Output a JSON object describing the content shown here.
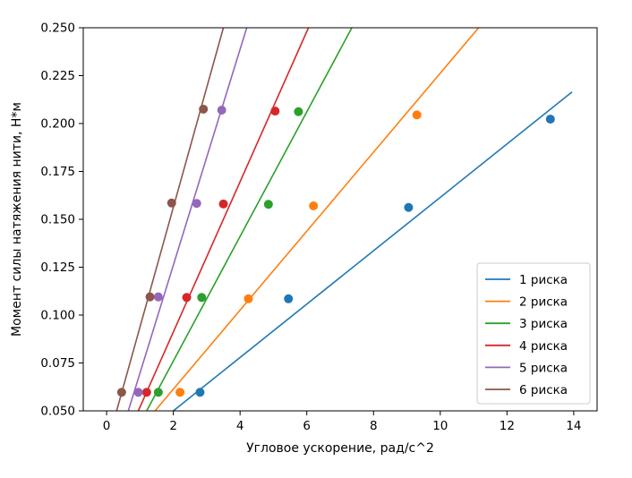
{
  "chart_data": {
    "type": "scatter",
    "title": "",
    "xlabel": "Угловое ускорение, рад/с^2",
    "ylabel": "Момент силы натяжения нити, Н*м",
    "xlim": [
      -0.7,
      14.7
    ],
    "ylim": [
      0.05,
      0.25
    ],
    "x_ticks": [
      0,
      2,
      4,
      6,
      8,
      10,
      12,
      14
    ],
    "y_ticks": [
      0.05,
      0.075,
      0.1,
      0.125,
      0.15,
      0.175,
      0.2,
      0.225,
      0.25
    ],
    "x_tick_labels": [
      "0",
      "2",
      "4",
      "6",
      "8",
      "10",
      "12",
      "14"
    ],
    "y_tick_labels": [
      "0.050",
      "0.075",
      "0.100",
      "0.125",
      "0.150",
      "0.175",
      "0.200",
      "0.225",
      "0.250"
    ],
    "grid": false,
    "legend_position": "lower-right",
    "series": [
      {
        "name": "1 риска",
        "color": "#1f77b4",
        "points": [
          [
            2.8,
            0.0597
          ],
          [
            5.45,
            0.1085
          ],
          [
            9.05,
            0.1562
          ],
          [
            13.3,
            0.2023
          ]
        ],
        "fit_line": [
          [
            2.0,
            0.05
          ],
          [
            13.95,
            0.2165
          ]
        ]
      },
      {
        "name": "2 риска",
        "color": "#ff7f0e",
        "points": [
          [
            2.2,
            0.0597
          ],
          [
            4.25,
            0.1085
          ],
          [
            6.2,
            0.157
          ],
          [
            9.3,
            0.2045
          ]
        ],
        "fit_line": [
          [
            1.45,
            0.05
          ],
          [
            11.15,
            0.25
          ]
        ]
      },
      {
        "name": "3 риска",
        "color": "#2ca02c",
        "points": [
          [
            1.55,
            0.0597
          ],
          [
            2.85,
            0.1092
          ],
          [
            4.85,
            0.1578
          ],
          [
            5.75,
            0.2062
          ]
        ],
        "fit_line": [
          [
            1.2,
            0.05
          ],
          [
            7.35,
            0.25
          ]
        ]
      },
      {
        "name": "4 риска",
        "color": "#d62728",
        "points": [
          [
            1.2,
            0.0597
          ],
          [
            2.4,
            0.1092
          ],
          [
            3.5,
            0.158
          ],
          [
            5.05,
            0.2065
          ]
        ],
        "fit_line": [
          [
            0.95,
            0.05
          ],
          [
            6.05,
            0.25
          ]
        ]
      },
      {
        "name": "5 риска",
        "color": "#9467bd",
        "points": [
          [
            0.95,
            0.0597
          ],
          [
            1.55,
            0.1095
          ],
          [
            2.7,
            0.1583
          ],
          [
            3.45,
            0.207
          ]
        ],
        "fit_line": [
          [
            0.65,
            0.05
          ],
          [
            4.2,
            0.25
          ]
        ]
      },
      {
        "name": "6 риска",
        "color": "#8c564b",
        "points": [
          [
            0.45,
            0.0597
          ],
          [
            1.3,
            0.1095
          ],
          [
            1.95,
            0.1585
          ],
          [
            2.9,
            0.2075
          ]
        ],
        "fit_line": [
          [
            0.3,
            0.05
          ],
          [
            3.5,
            0.25
          ]
        ]
      }
    ]
  }
}
